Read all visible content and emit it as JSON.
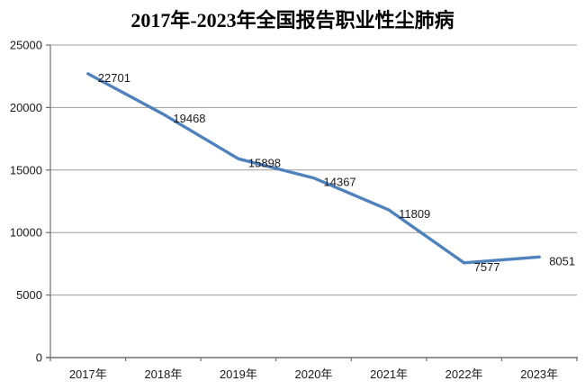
{
  "chart_data": {
    "type": "line",
    "title": "2017年-2023年全国报告职业性尘肺病",
    "categories": [
      "2017年",
      "2018年",
      "2019年",
      "2020年",
      "2021年",
      "2022年",
      "2023年"
    ],
    "values": [
      22701,
      19468,
      15898,
      14367,
      11809,
      7577,
      8051
    ],
    "series_name": "全国报告职业性尘肺病",
    "xlabel": "",
    "ylabel": "",
    "ylim": [
      0,
      25000
    ],
    "ytick_step": 5000,
    "ytick_labels": [
      "0",
      "5000",
      "10000",
      "15000",
      "20000",
      "25000"
    ],
    "grid": true,
    "legend_position": "none",
    "data_labels_shown": true,
    "line_color": "#4F81BD",
    "grid_color": "#9C9C9C",
    "axis_color": "#6E6E6E",
    "text_color": "#1A1A1A",
    "title_color": "#000000",
    "background_color": "#FFFFFF"
  }
}
